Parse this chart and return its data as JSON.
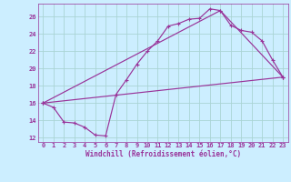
{
  "xlabel": "Windchill (Refroidissement éolien,°C)",
  "xlim": [
    -0.5,
    23.5
  ],
  "ylim": [
    11.5,
    27.5
  ],
  "xticks": [
    0,
    1,
    2,
    3,
    4,
    5,
    6,
    7,
    8,
    9,
    10,
    11,
    12,
    13,
    14,
    15,
    16,
    17,
    18,
    19,
    20,
    21,
    22,
    23
  ],
  "yticks": [
    12,
    14,
    16,
    18,
    20,
    22,
    24,
    26
  ],
  "bg_color": "#cceeff",
  "grid_color": "#aad4d4",
  "line_color": "#993399",
  "line1_x": [
    0,
    1,
    2,
    3,
    4,
    5,
    6,
    7,
    8,
    9,
    10,
    11,
    12,
    13,
    14,
    15,
    16,
    17,
    18,
    19,
    20,
    21,
    22,
    23
  ],
  "line1_y": [
    16.0,
    15.5,
    13.8,
    13.7,
    13.2,
    12.3,
    12.2,
    17.0,
    18.7,
    20.5,
    22.0,
    23.2,
    24.9,
    25.2,
    25.7,
    25.8,
    26.9,
    26.7,
    25.0,
    24.4,
    24.2,
    23.2,
    21.0,
    19.0
  ],
  "line2_x": [
    0,
    23
  ],
  "line2_y": [
    16.0,
    19.0
  ],
  "line3_x": [
    0,
    17,
    23
  ],
  "line3_y": [
    16.0,
    26.7,
    19.0
  ],
  "tick_fontsize": 5,
  "xlabel_fontsize": 5.5
}
